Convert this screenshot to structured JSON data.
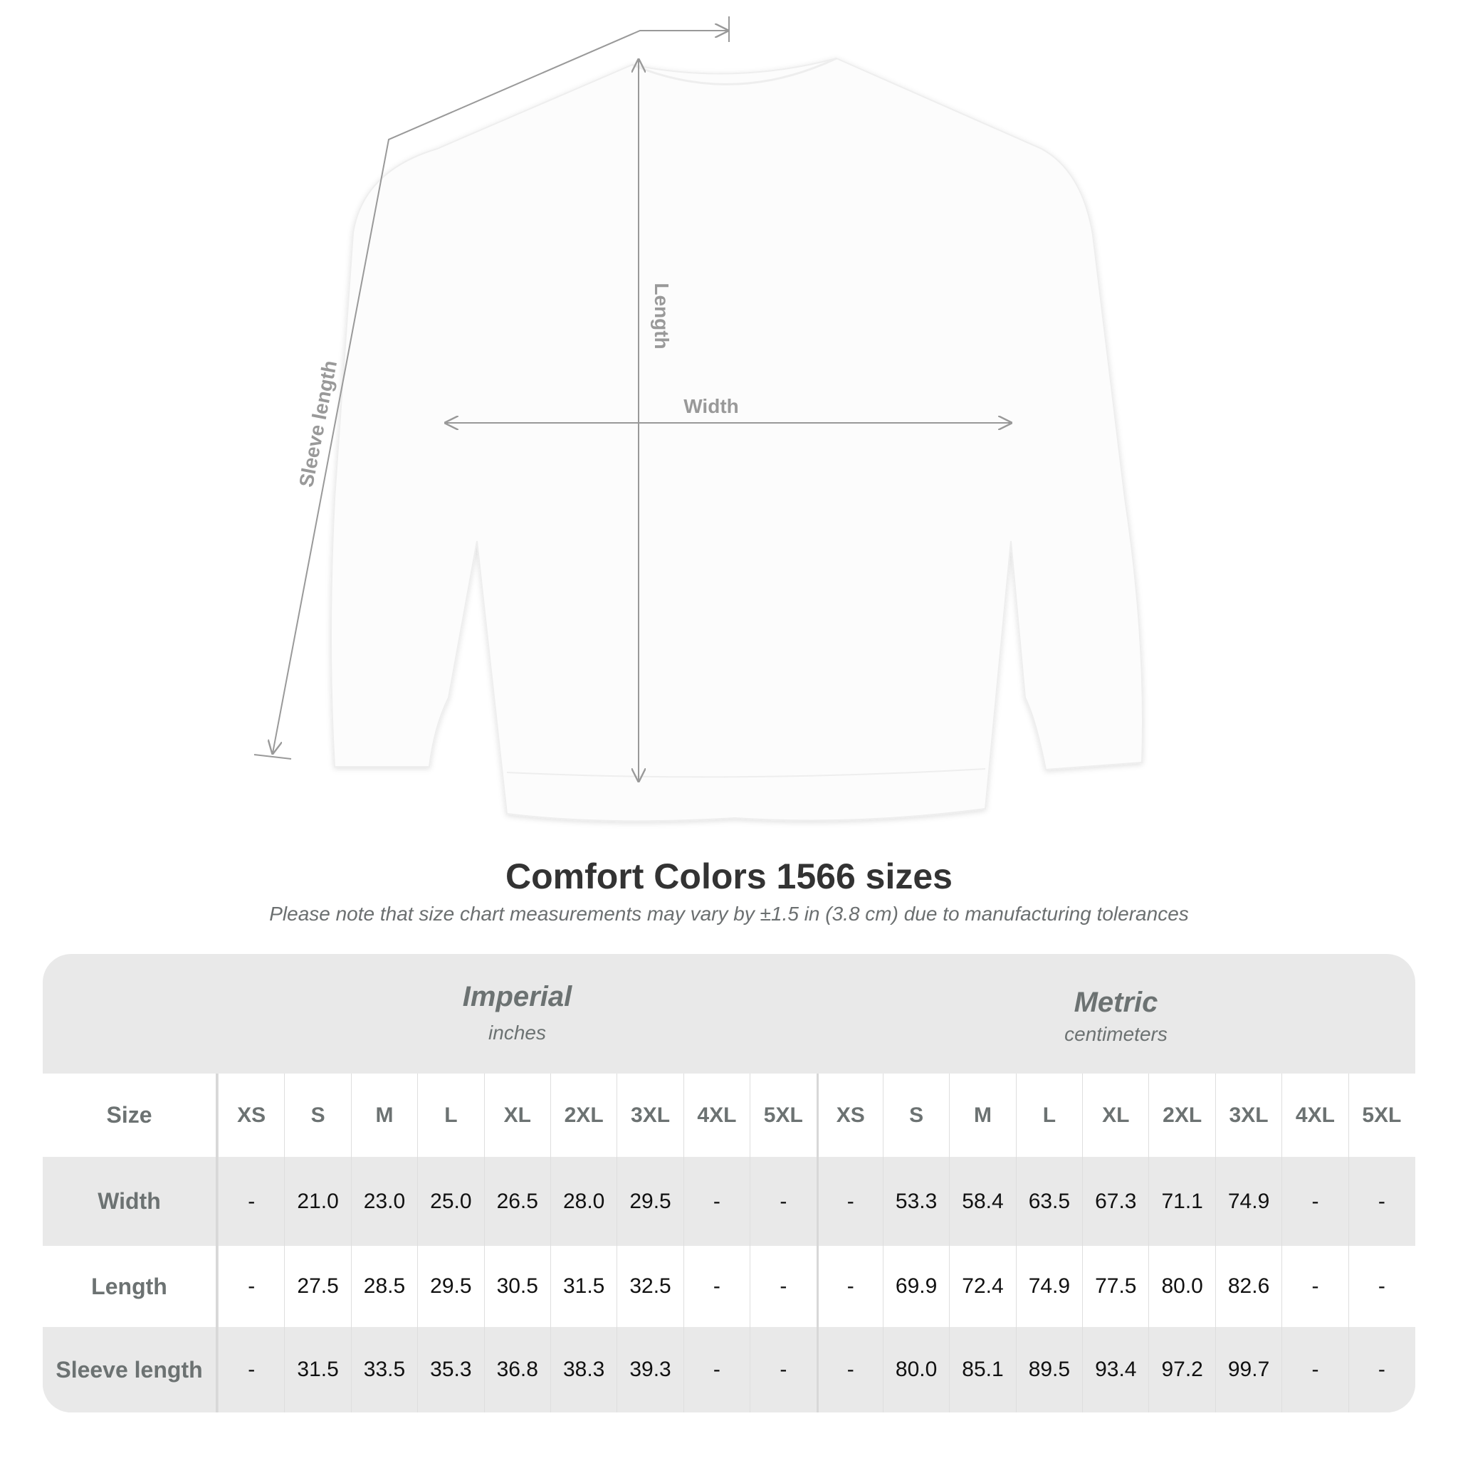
{
  "illustration": {
    "labels": {
      "length": "Length",
      "width": "Width",
      "sleeve_length": "Sleeve length"
    },
    "garment_color": "#ffffff",
    "measure_line_color": "#999999"
  },
  "title": "Comfort Colors 1566 sizes",
  "note": "Please note that size chart measurements may vary by ±1.5 in (3.8 cm) due to manufacturing tolerances",
  "table": {
    "imperial": {
      "title": "Imperial",
      "unit": "inches"
    },
    "metric": {
      "title": "Metric",
      "unit": "centimeters"
    },
    "size_label": "Size",
    "sizes": [
      "XS",
      "S",
      "M",
      "L",
      "XL",
      "2XL",
      "3XL",
      "4XL",
      "5XL"
    ],
    "rows": [
      {
        "label": "Width",
        "imperial": [
          "-",
          "21.0",
          "23.0",
          "25.0",
          "26.5",
          "28.0",
          "29.5",
          "-",
          "-"
        ],
        "metric": [
          "-",
          "53.3",
          "58.4",
          "63.5",
          "67.3",
          "71.1",
          "74.9",
          "-",
          "-"
        ]
      },
      {
        "label": "Length",
        "imperial": [
          "-",
          "27.5",
          "28.5",
          "29.5",
          "30.5",
          "31.5",
          "32.5",
          "-",
          "-"
        ],
        "metric": [
          "-",
          "69.9",
          "72.4",
          "74.9",
          "77.5",
          "80.0",
          "82.6",
          "-",
          "-"
        ]
      },
      {
        "label": "Sleeve length",
        "imperial": [
          "-",
          "31.5",
          "33.5",
          "35.3",
          "36.8",
          "38.3",
          "39.3",
          "-",
          "-"
        ],
        "metric": [
          "-",
          "80.0",
          "85.1",
          "89.5",
          "93.4",
          "97.2",
          "99.7",
          "-",
          "-"
        ]
      }
    ]
  }
}
